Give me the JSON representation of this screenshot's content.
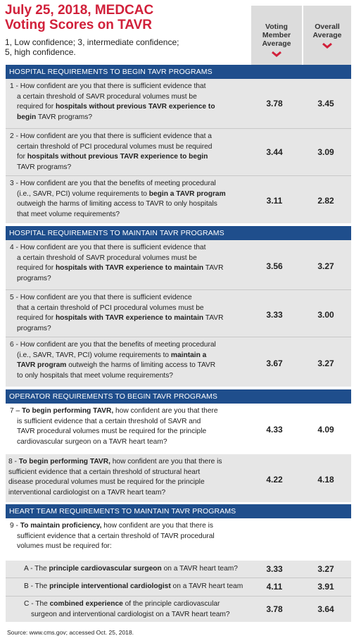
{
  "title_line1": "July 25, 2018, MEDCAC",
  "title_line2": "Voting Scores on TAVR",
  "subtitle_line1": "1, Low confidence; 3, intermediate confidence;",
  "subtitle_line2": "5, high confidence.",
  "columns": {
    "voting_line1": "Voting",
    "voting_line2": "Member",
    "voting_line3": "Average",
    "overall_line1": "Overall",
    "overall_line2": "Average"
  },
  "colors": {
    "title_red": "#d1203a",
    "section_blue": "#1f4e8c",
    "shade_gray": "#e6e6e6",
    "header_gray": "#dcdcdc"
  },
  "sections": {
    "s1": "HOSPITAL REQUIREMENTS TO BEGIN TAVR PROGRAMS",
    "s2": "HOSPITAL REQUIREMENTS TO MAINTAIN TAVR PROGRAMS",
    "s3": "OPERATOR REQUIREMENTS TO BEGIN TAVR PROGRAMS",
    "s4": "HEART TEAM REQUIREMENTS TO MAINTAIN TAVR PROGRAMS"
  },
  "q1": {
    "a": "1 - How confident are you that there is sufficient evidence that",
    "b": "a certain threshold of SAVR procedural volumes must be",
    "c1": "required for ",
    "c2": "hospitals without previous TAVR experience to",
    "d1": "begin",
    "d2": " TAVR programs?",
    "voting": "3.78",
    "overall": "3.45"
  },
  "q2": {
    "a": "2 - How confident are you that there is sufficient evidence that a",
    "b": "certain threshold of PCI procedural volumes must be required",
    "c1": "for ",
    "c2": "hospitals without previous TAVR experience to begin",
    "d": "TAVR programs?",
    "voting": "3.44",
    "overall": "3.09"
  },
  "q3": {
    "a": "3 - How confident are you that the benefits of meeting procedural",
    "b": "(i.e., SAVR, PCI) volume requirements to ",
    "b2": "begin a TAVR program",
    "c": "outweigh the harms of limiting access to TAVR to only hospitals",
    "d": "that meet volume requirements?",
    "voting": "3.11",
    "overall": "2.82"
  },
  "q4": {
    "a": "4 - How confident are you that there is sufficient evidence that",
    "b": "a certain threshold of SAVR procedural volumes must be",
    "c1": "required for ",
    "c2": "hospitals with TAVR experience to maintain",
    "c3": " TAVR",
    "d": "programs?",
    "voting": "3.56",
    "overall": "3.27"
  },
  "q5": {
    "a": "5 - How confident are you that there is sufficient evidence",
    "b": "that a certain threshold of PCI procedural volumes must be",
    "c1": "required for ",
    "c2": "hospitals with TAVR experience to maintain",
    "c3": " TAVR",
    "d": "programs?",
    "voting": "3.33",
    "overall": "3.00"
  },
  "q6": {
    "a": "6 - How confident are you that the benefits of meeting procedural",
    "b1": "(i.e., SAVR, TAVR, PCI) volume requirements to ",
    "b2": "maintain a",
    "c1": "TAVR program",
    "c2": " outweigh the harms of limiting access to TAVR",
    "d": "to only hospitals that meet volume requirements?",
    "voting": "3.67",
    "overall": "3.27"
  },
  "q7": {
    "a1": "7 – ",
    "a2": "To begin performing TAVR,",
    "a3": " how confident are you that there",
    "b": "is sufficient evidence that a certain threshold of SAVR and",
    "c": "TAVR procedural volumes must be required for the principle",
    "d": "cardiovascular surgeon on a TAVR heart team?",
    "voting": "4.33",
    "overall": "4.09"
  },
  "q8": {
    "a1": "8 - ",
    "a2": "To begin performing TAVR,",
    "a3": " how confident are you that there is",
    "b": "sufficient evidence that a certain threshold of structural heart",
    "c": "disease procedural volumes must be required for the principle",
    "d": "interventional cardiologist on a TAVR heart team?",
    "voting": "4.22",
    "overall": "4.18"
  },
  "q9": {
    "a1": "9 - ",
    "a2": "To maintain proficiency,",
    "a3": " how confident are you that there is",
    "b": "sufficient evidence that a certain threshold of TAVR procedural",
    "c": "volumes must be required for:"
  },
  "q9a": {
    "p1": "A - The ",
    "p2": "principle cardiovascular surgeon",
    "p3": " on a TAVR heart team?",
    "voting": "3.33",
    "overall": "3.27"
  },
  "q9b": {
    "p1": "B - The ",
    "p2": "principle interventional cardiologist",
    "p3": " on a TAVR heart team",
    "voting": "4.11",
    "overall": "3.91"
  },
  "q9c": {
    "p1": "C - The ",
    "p2": "combined experience",
    "p3": " of the principle cardiovascular",
    "p4": "surgeon and interventional cardiologist on a TAVR heart team?",
    "voting": "3.78",
    "overall": "3.64"
  },
  "source": "Source: www.cms.gov; accessed Oct. 25, 2018."
}
